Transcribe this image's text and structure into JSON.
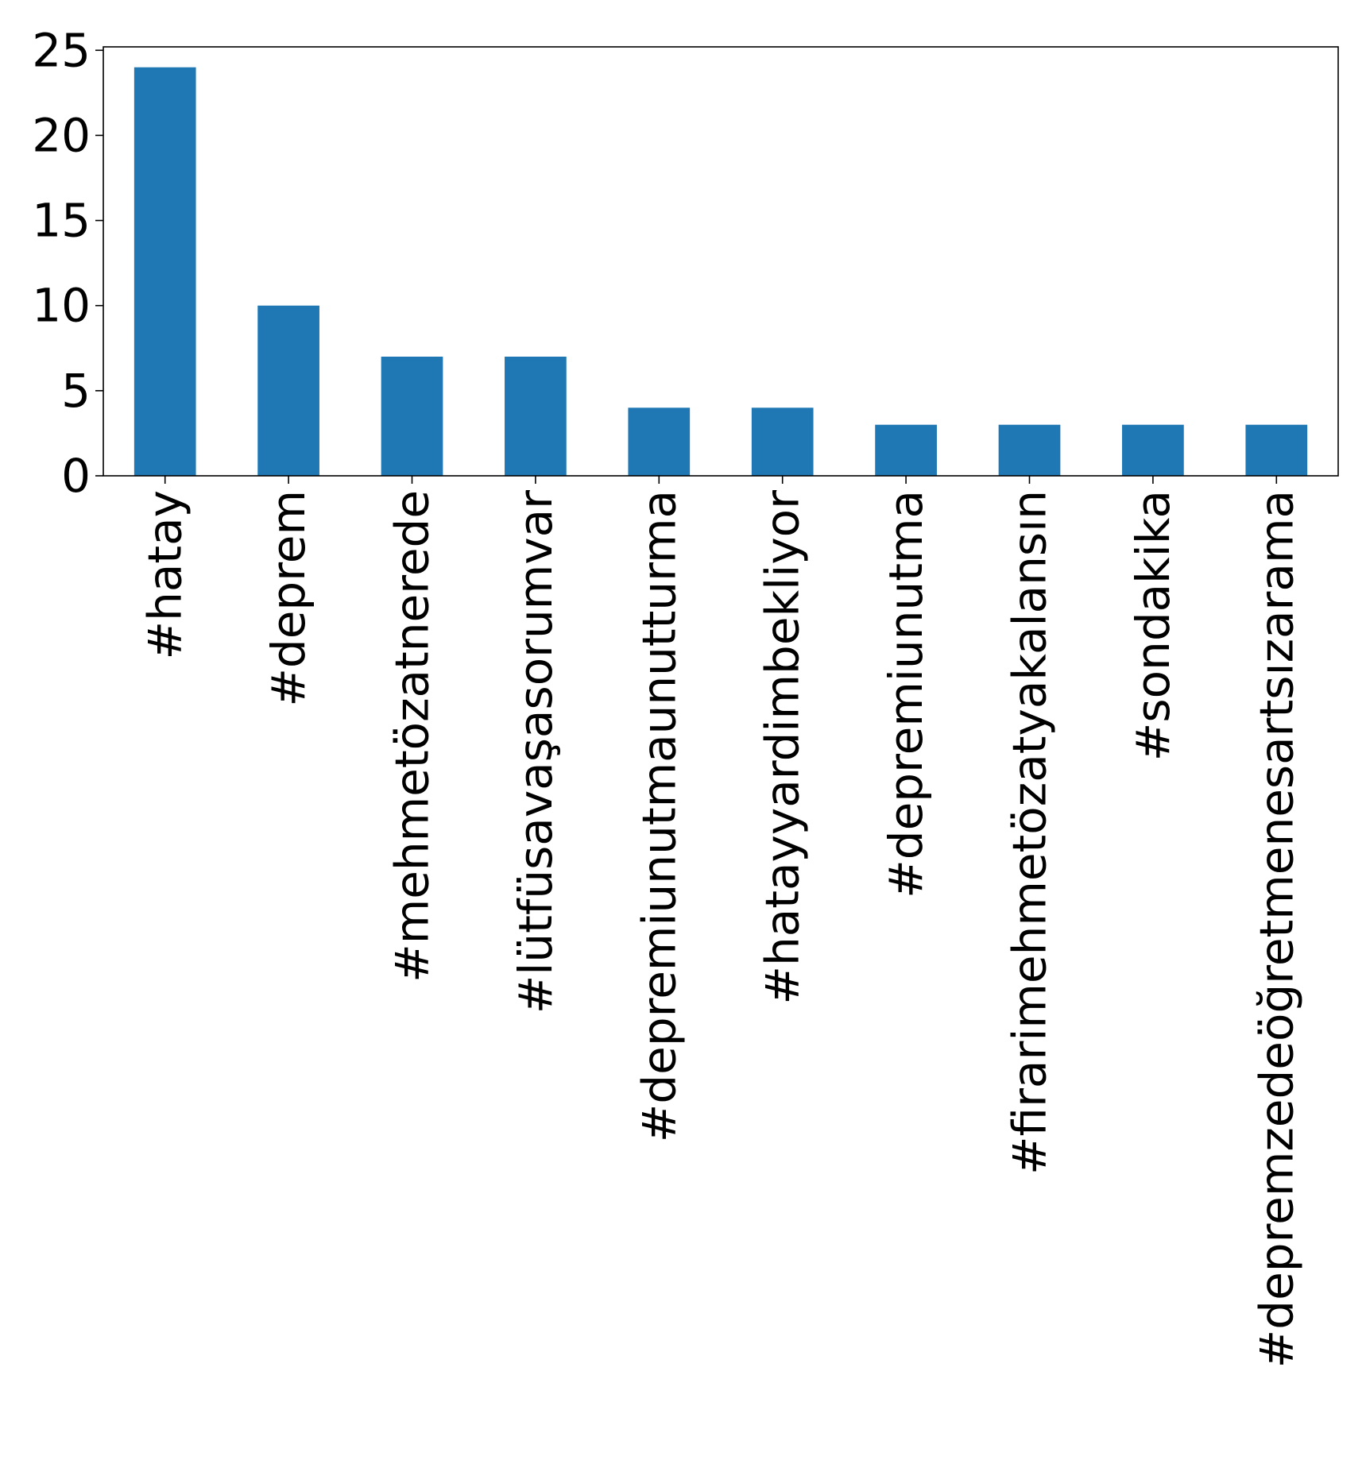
{
  "chart_data": {
    "type": "bar",
    "categories": [
      "#hatay",
      "#deprem",
      "#mehmetözatnerede",
      "#lütfüsavaşasorumvar",
      "#depremiunutmaunutturma",
      "#hatayyardimbekliyor",
      "#depremiunutma",
      "#firarimehmetözatyakalansın",
      "#sondakika",
      "#depremzedeöğretmenesartsızarama"
    ],
    "values": [
      24,
      10,
      7,
      7,
      4,
      4,
      3,
      3,
      3,
      3
    ],
    "ylim": [
      0,
      25.2
    ],
    "yticks": [
      0,
      5,
      10,
      15,
      20,
      25
    ],
    "title": "",
    "xlabel": "",
    "ylabel": "",
    "grid": false,
    "bar_color": "#1f77b4"
  }
}
